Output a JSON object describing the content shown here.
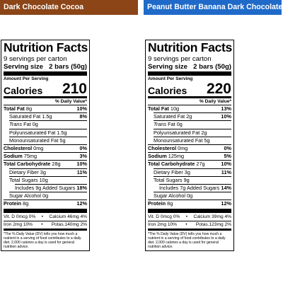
{
  "colors": {
    "left_banner": "#8b4517",
    "right_banner": "#1f6ac9"
  },
  "labels": [
    {
      "flavor": "Dark Chocolate Cocoa",
      "title": "Nutrition Facts",
      "servings": "9 servings per carton",
      "serving_size_label": "Serving size",
      "serving_size_value": "2 bars (50g)",
      "amount_per_serving": "Amount Per Serving",
      "calories_label": "Calories",
      "calories": "210",
      "dv_header": "% Daily Value*",
      "nutrients": {
        "total_fat": {
          "label": "Total Fat",
          "amount": "8g",
          "dv": "10%"
        },
        "saturated_fat": {
          "label": "Saturated Fat",
          "amount": "1.5g",
          "dv": "8%"
        },
        "trans_fat": {
          "label": "Trans",
          "suffix": "Fat",
          "amount": "0g"
        },
        "polyunsaturated_fat": {
          "label": "Polyunsaturated Fat",
          "amount": "1.5g"
        },
        "monounsaturated_fat": {
          "label": "Monounsaturated Fat",
          "amount": "5g"
        },
        "cholesterol": {
          "label": "Cholesterol",
          "amount": "0mg",
          "dv": "0%"
        },
        "sodium": {
          "label": "Sodium",
          "amount": "75mg",
          "dv": "3%"
        },
        "total_carbohydrate": {
          "label": "Total Carbohydrate",
          "amount": "28g",
          "dv": "10%"
        },
        "dietary_fiber": {
          "label": "Dietary Fiber",
          "amount": "3g",
          "dv": "11%"
        },
        "total_sugars": {
          "label": "Total Sugars",
          "amount": "10g"
        },
        "added_sugars": {
          "prefix": "Includes",
          "amount": "9g",
          "label": "Added Sugars",
          "dv": "18%"
        },
        "sugar_alcohol": {
          "label": "Sugar Alcohol",
          "amount": "0g"
        },
        "protein": {
          "label": "Protein",
          "amount": "8g",
          "dv": "12%"
        }
      },
      "vitamins": {
        "vit_d": "Vit. D 0mcg 0%",
        "calcium": "Calcium 46mg 4%",
        "iron": "Iron 2mg 10%",
        "potas": "Potas.140mg 2%"
      },
      "footnote": "*The % Daily Value (DV) tells you how much a nutrient in a serving of food contributes to a daily diet. 2,000 calories a day is used for general nutrition advice."
    },
    {
      "flavor": "Peanut Butter Banana Dark Chocolate",
      "title": "Nutrition Facts",
      "servings": "9 servings per carton",
      "serving_size_label": "Serving size",
      "serving_size_value": "2 bars (50g)",
      "amount_per_serving": "Amount Per Serving",
      "calories_label": "Calories",
      "calories": "220",
      "dv_header": "% Daily Value*",
      "nutrients": {
        "total_fat": {
          "label": "Total Fat",
          "amount": "10g",
          "dv": "13%"
        },
        "saturated_fat": {
          "label": "Saturated Fat",
          "amount": "2g",
          "dv": "10%"
        },
        "trans_fat": {
          "label": "Trans",
          "suffix": "Fat",
          "amount": "0g"
        },
        "polyunsaturated_fat": {
          "label": "Polyunsaturated Fat",
          "amount": "2g"
        },
        "monounsaturated_fat": {
          "label": "Monounsaturated Fat",
          "amount": "5g"
        },
        "cholesterol": {
          "label": "Cholesterol",
          "amount": "0mg",
          "dv": "0%"
        },
        "sodium": {
          "label": "Sodium",
          "amount": "125mg",
          "dv": "5%"
        },
        "total_carbohydrate": {
          "label": "Total Carbohydrate",
          "amount": "27g",
          "dv": "10%"
        },
        "dietary_fiber": {
          "label": "Dietary Fiber",
          "amount": "3g",
          "dv": "11%"
        },
        "total_sugars": {
          "label": "Total Sugars",
          "amount": "9g"
        },
        "added_sugars": {
          "prefix": "Includes",
          "amount": "7g",
          "label": "Added Sugars",
          "dv": "14%"
        },
        "sugar_alcohol": {
          "label": "Sugar Alcohol",
          "amount": "0g"
        },
        "protein": {
          "label": "Protein",
          "amount": "8g",
          "dv": "12%"
        }
      },
      "vitamins": {
        "vit_d": "Vit. D 0mcg 0%",
        "calcium": "Calcium 39mg 4%",
        "iron": "Iron 2mg 10%",
        "potas": "Potas.123mg 2%"
      },
      "footnote": "*The % Daily Value (DV) tells you how much a nutrient in a serving of food contributes to a daily diet. 2,000 calories a day is used for general nutrition advice."
    }
  ]
}
